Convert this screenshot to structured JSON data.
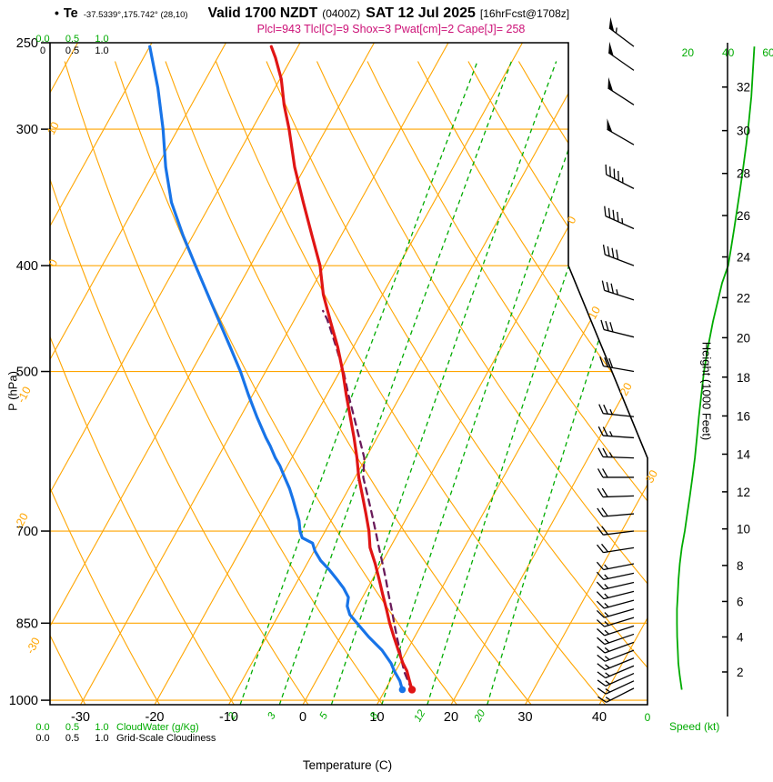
{
  "header": {
    "bullet": "•",
    "station": "Te",
    "coords": "-37.5339°,175.742° (28,10)",
    "valid": "Valid 1700 NZDT",
    "zulu": "(0400Z)",
    "date": "SAT 12 Jul 2025",
    "fcst": "[16hrFcst@1708z]",
    "indices": "Plcl=943 Tlcl[C]=9 Shox=3 Pwat[cm]=2 Cape[J]= 258"
  },
  "axes": {
    "pressure_label": "P (hPa)",
    "temperature_label": "Temperature (C)",
    "height_label": "Height (1000 Feet)",
    "speed_label": "Speed (kt)",
    "cloudwater_label": "CloudWater (g/Kg)",
    "cloudiness_label": "Grid-Scale Cloudiness"
  },
  "chart_data": {
    "type": "skewt_log_p_sounding",
    "title": "Valid 1700 NZDT (0400Z) SAT 12 Jul 2025 [16hrFcst@1708z]",
    "pressure_ticks_hpa": [
      250,
      300,
      400,
      500,
      700,
      850,
      1000
    ],
    "pressure_range_hpa": [
      250,
      1010
    ],
    "temperature_ticks_c": [
      -30,
      -20,
      -10,
      0,
      10,
      20,
      30,
      40
    ],
    "height_ticks_kft": [
      2,
      4,
      6,
      8,
      10,
      12,
      14,
      16,
      18,
      20,
      22,
      24,
      26,
      28,
      30,
      32
    ],
    "speed_scale_top_kt": [
      "20",
      "40",
      "60"
    ],
    "speed_scale_bottom_kt": "0",
    "cloudwater_scale": [
      "0.0",
      "0.5",
      "1.0"
    ],
    "cloudiness_scale_top": [
      "0",
      "0.5",
      "1.0"
    ],
    "cloudwater_scale_bottom": [
      "0.0",
      "0.5",
      "1.0"
    ],
    "cloudiness_scale_bottom": [
      "0.0",
      "0.5",
      "1.0"
    ],
    "mixing_ratio_g_kg": [
      2,
      3,
      5,
      8,
      12,
      20
    ],
    "dry_adiabat_labels_c": [
      10,
      0,
      -10,
      -20,
      -30
    ],
    "isotherm_labels_right_c": [
      0,
      10,
      20,
      30
    ],
    "temperature_c": [
      [
        978,
        13.6
      ],
      [
        960,
        12.6
      ],
      [
        940,
        11.5
      ],
      [
        925,
        10.4
      ],
      [
        900,
        8.8
      ],
      [
        875,
        7.2
      ],
      [
        850,
        5.6
      ],
      [
        825,
        4.1
      ],
      [
        800,
        2.5
      ],
      [
        775,
        0.9
      ],
      [
        750,
        -0.8
      ],
      [
        725,
        -2.7
      ],
      [
        700,
        -4.1
      ],
      [
        675,
        -5.8
      ],
      [
        650,
        -7.6
      ],
      [
        625,
        -9.5
      ],
      [
        600,
        -11.2
      ],
      [
        575,
        -13.1
      ],
      [
        550,
        -15.2
      ],
      [
        525,
        -17.4
      ],
      [
        500,
        -19.6
      ],
      [
        475,
        -22.1
      ],
      [
        450,
        -25.0
      ],
      [
        425,
        -28.0
      ],
      [
        400,
        -30.6
      ],
      [
        375,
        -34.0
      ],
      [
        350,
        -37.6
      ],
      [
        325,
        -41.4
      ],
      [
        300,
        -45.0
      ],
      [
        285,
        -47.5
      ],
      [
        270,
        -49.8
      ],
      [
        258,
        -52.2
      ],
      [
        252,
        -53.6
      ]
    ],
    "dewpoint_c": [
      [
        978,
        12.3
      ],
      [
        960,
        11.3
      ],
      [
        940,
        9.8
      ],
      [
        925,
        8.8
      ],
      [
        900,
        6.6
      ],
      [
        875,
        3.8
      ],
      [
        850,
        1.2
      ],
      [
        835,
        -0.4
      ],
      [
        820,
        -1.4
      ],
      [
        805,
        -1.9
      ],
      [
        790,
        -3.2
      ],
      [
        775,
        -4.8
      ],
      [
        760,
        -6.5
      ],
      [
        745,
        -8.4
      ],
      [
        730,
        -9.9
      ],
      [
        718,
        -10.8
      ],
      [
        710,
        -12.6
      ],
      [
        700,
        -13.4
      ],
      [
        685,
        -14.3
      ],
      [
        670,
        -15.5
      ],
      [
        655,
        -16.7
      ],
      [
        640,
        -18.0
      ],
      [
        625,
        -19.5
      ],
      [
        610,
        -21.0
      ],
      [
        600,
        -22.2
      ],
      [
        585,
        -23.8
      ],
      [
        575,
        -25.0
      ],
      [
        550,
        -27.8
      ],
      [
        525,
        -30.6
      ],
      [
        500,
        -33.4
      ],
      [
        475,
        -36.6
      ],
      [
        450,
        -40.0
      ],
      [
        425,
        -43.6
      ],
      [
        400,
        -47.4
      ],
      [
        375,
        -51.4
      ],
      [
        350,
        -55.4
      ],
      [
        325,
        -58.8
      ],
      [
        300,
        -62.0
      ],
      [
        275,
        -65.8
      ],
      [
        252,
        -70.0
      ]
    ],
    "parcel_c": [
      [
        978,
        13.6
      ],
      [
        960,
        12.4
      ],
      [
        943,
        11.3
      ],
      [
        925,
        10.3
      ],
      [
        900,
        9.0
      ],
      [
        875,
        7.6
      ],
      [
        850,
        6.2
      ],
      [
        825,
        4.8
      ],
      [
        800,
        3.3
      ],
      [
        775,
        1.8
      ],
      [
        750,
        0.2
      ],
      [
        725,
        -1.5
      ],
      [
        700,
        -3.2
      ],
      [
        675,
        -5.0
      ],
      [
        650,
        -6.9
      ],
      [
        625,
        -8.9
      ],
      [
        600,
        -10.2
      ],
      [
        575,
        -12.4
      ],
      [
        550,
        -14.7
      ],
      [
        525,
        -17.1
      ],
      [
        500,
        -19.5
      ],
      [
        475,
        -22.3
      ],
      [
        460,
        -24.1
      ],
      [
        448,
        -25.6
      ],
      [
        440,
        -26.8
      ]
    ],
    "wind_barbs_p_dir_kt": [
      [
        975,
        243,
        15
      ],
      [
        960,
        245,
        15
      ],
      [
        945,
        246,
        15
      ],
      [
        930,
        247,
        15
      ],
      [
        915,
        248,
        15
      ],
      [
        900,
        249,
        15
      ],
      [
        885,
        250,
        15
      ],
      [
        870,
        251,
        15
      ],
      [
        855,
        252,
        15
      ],
      [
        840,
        253,
        15
      ],
      [
        825,
        254,
        15
      ],
      [
        810,
        255,
        15
      ],
      [
        795,
        256,
        15
      ],
      [
        780,
        257,
        15
      ],
      [
        765,
        258,
        16
      ],
      [
        750,
        259,
        17
      ],
      [
        725,
        261,
        18
      ],
      [
        700,
        263,
        19
      ],
      [
        675,
        265,
        20
      ],
      [
        650,
        268,
        21
      ],
      [
        625,
        270,
        22
      ],
      [
        600,
        272,
        24
      ],
      [
        575,
        274,
        25
      ],
      [
        550,
        276,
        26
      ],
      [
        500,
        280,
        28
      ],
      [
        465,
        284,
        31
      ],
      [
        430,
        288,
        35
      ],
      [
        400,
        291,
        39
      ],
      [
        370,
        294,
        43
      ],
      [
        340,
        297,
        46
      ],
      [
        310,
        300,
        49
      ],
      [
        285,
        303,
        51
      ],
      [
        265,
        305,
        52
      ],
      [
        252,
        307,
        53
      ]
    ],
    "wind_speed_kt": [
      [
        978,
        17
      ],
      [
        950,
        16
      ],
      [
        925,
        15.3
      ],
      [
        900,
        15
      ],
      [
        875,
        14.7
      ],
      [
        850,
        14.6
      ],
      [
        825,
        14.6
      ],
      [
        800,
        15
      ],
      [
        775,
        15.4
      ],
      [
        750,
        16
      ],
      [
        725,
        17
      ],
      [
        700,
        18.5
      ],
      [
        675,
        19.7
      ],
      [
        650,
        21
      ],
      [
        625,
        22.3
      ],
      [
        600,
        23.5
      ],
      [
        575,
        24.5
      ],
      [
        550,
        25.5
      ],
      [
        525,
        26.7
      ],
      [
        500,
        28
      ],
      [
        475,
        30
      ],
      [
        450,
        32.5
      ],
      [
        430,
        35
      ],
      [
        415,
        37
      ],
      [
        400,
        40
      ],
      [
        385,
        41.5
      ],
      [
        370,
        43
      ],
      [
        355,
        44.5
      ],
      [
        340,
        46
      ],
      [
        325,
        47.5
      ],
      [
        310,
        49
      ],
      [
        295,
        50.3
      ],
      [
        280,
        51.5
      ],
      [
        265,
        52.3
      ],
      [
        252,
        53
      ]
    ],
    "colors": {
      "grid": "#ffa500",
      "moisture": "#00ab00",
      "temperature": "#e01515",
      "dewpoint": "#1874e8",
      "parcel": "#6a1b5a",
      "indices_text": "#cc1177",
      "frame": "#000000"
    }
  }
}
